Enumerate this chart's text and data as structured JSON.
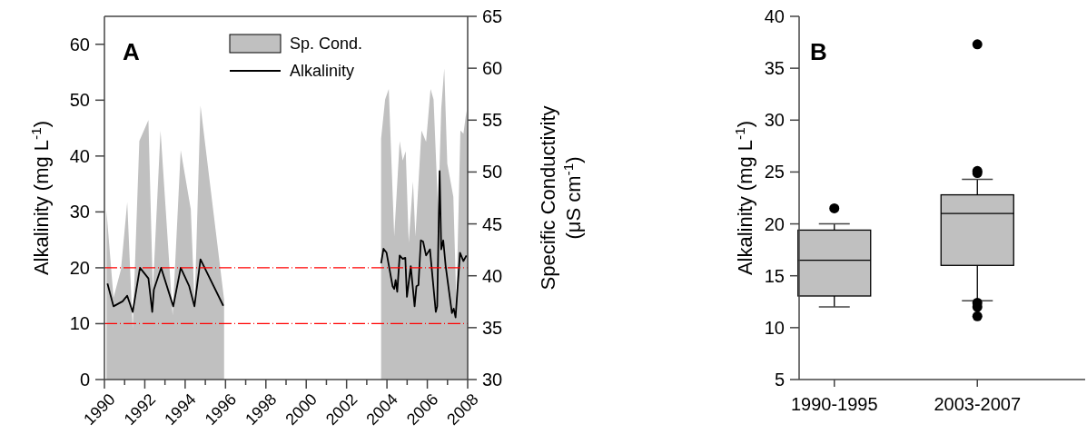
{
  "chart_data": [
    {
      "type": "area",
      "annotations": [
        "A"
      ],
      "ylabel": "Alkalinity (mg L$^{-1}$)",
      "y2label": "Specific Conductivity (μS cm$^{-1}$)",
      "xlim": [
        1990,
        2008
      ],
      "xticks": [
        1990,
        {
          "value": 1991,
          "label": null
        },
        1992,
        {
          "value": 1993,
          "label": null
        },
        1994,
        {
          "value": 1995,
          "label": null
        },
        1996,
        {
          "value": 1997,
          "label": null
        },
        1998,
        {
          "value": 1999,
          "label": null
        },
        2000,
        {
          "value": 2001,
          "label": null
        },
        2002,
        {
          "value": 2003,
          "label": null
        },
        2004,
        {
          "value": 2005,
          "label": null
        },
        2006,
        {
          "value": 2007,
          "label": null
        },
        2008
      ],
      "ylim": [
        0,
        65
      ],
      "yticks": [
        0,
        10,
        20,
        30,
        40,
        50,
        60
      ],
      "y2lim": [
        30,
        65
      ],
      "y2ticks": [
        30,
        35,
        40,
        45,
        50,
        55,
        60,
        65
      ],
      "legend": "top",
      "ref_lines": [
        {
          "axis": "y",
          "value": 20,
          "color": "#ff0000",
          "line_style": "dashed"
        },
        {
          "axis": "y",
          "value": 10,
          "color": "#ff0000",
          "line_style": "dashed"
        }
      ],
      "series": [
        {
          "name": "Sp. Cond.",
          "type": "area",
          "axis": "y2",
          "color": "#c0c0c0",
          "x": [
            1990.1,
            1990.45,
            1990.82,
            1991.13,
            1991.4,
            1991.73,
            1992.18,
            1992.4,
            1992.78,
            1993.38,
            1993.78,
            1994.28,
            1994.47,
            1994.76,
            1995.93,
            2000,
            2003.71,
            2003.91,
            2004.09,
            2004.36,
            2004.63,
            2004.78,
            2004.93,
            2005.08,
            2005.29,
            2005.41,
            2005.71,
            2005.94,
            2006.16,
            2006.31,
            2006.54,
            2006.69,
            2006.84,
            2006.99,
            2007.29,
            2007.44,
            2007.64,
            2007.79,
            2007.94,
            2008
          ],
          "values": [
            46.3,
            37.9,
            40.6,
            47.1,
            34.9,
            53.0,
            55.0,
            38.6,
            54.0,
            36.2,
            52.1,
            46.4,
            37.1,
            56.4,
            37.7,
            null,
            53.2,
            57.0,
            58.0,
            43.8,
            53.0,
            51.1,
            52.0,
            43.2,
            49.1,
            43.8,
            54.0,
            52.9,
            58.0,
            57.0,
            46.1,
            56.1,
            60.0,
            50.8,
            47.6,
            37.4,
            54.0,
            53.7,
            55.9,
            53.5
          ]
        },
        {
          "name": "Alkalinity",
          "type": "line",
          "color": "#000000",
          "x": [
            1990.15,
            1990.45,
            1990.9,
            1991.13,
            1991.4,
            1991.76,
            1992.18,
            1992.37,
            1992.45,
            1992.81,
            1993.41,
            1993.78,
            1994.2,
            1994.46,
            1994.76,
            1995.89,
            2000,
            2003.71,
            2003.83,
            2003.98,
            2004.28,
            2004.36,
            2004.43,
            2004.51,
            2004.63,
            2004.78,
            2004.91,
            2004.99,
            2005.18,
            2005.37,
            2005.46,
            2005.56,
            2005.68,
            2005.79,
            2005.94,
            2006.13,
            2006.42,
            2006.49,
            2006.61,
            2006.69,
            2006.79,
            2006.91,
            2007.22,
            2007.31,
            2007.4,
            2007.62,
            2007.79,
            2007.94
          ],
          "values": [
            17.2,
            13.1,
            14.0,
            15.0,
            12.1,
            20.0,
            18.1,
            12.1,
            16.1,
            20.0,
            13.1,
            20.0,
            16.7,
            13.1,
            21.5,
            13.2,
            null,
            20.8,
            23.4,
            22.7,
            16.7,
            16.2,
            17.8,
            15.7,
            22.2,
            21.6,
            21.8,
            14.8,
            20.3,
            13.1,
            16.7,
            16.9,
            24.9,
            24.7,
            22.2,
            23.3,
            12.1,
            13.1,
            37.3,
            23.3,
            24.9,
            20.3,
            11.9,
            12.7,
            11.1,
            22.7,
            21.2,
            22.2
          ]
        }
      ]
    },
    {
      "type": "box",
      "annotations": [
        "B"
      ],
      "ylabel": "Alkalinity (mg L$^{-1}$)",
      "categories": [
        "1990-1995",
        "2003-2007"
      ],
      "ylim": [
        5,
        40
      ],
      "yticks": [
        5,
        10,
        15,
        20,
        25,
        30,
        35,
        40
      ],
      "color": "#c0c0c0",
      "boxes": [
        {
          "low": 12.0,
          "q1": 13.05,
          "median": 16.5,
          "q3": 19.4,
          "high": 20.0,
          "outliers": [
            21.5
          ]
        },
        {
          "low": 12.6,
          "q1": 16.0,
          "median": 21.0,
          "q3": 22.8,
          "high": 24.3,
          "outliers": [
            37.3,
            25.1,
            24.9,
            12.4,
            12.0,
            11.1
          ]
        }
      ]
    }
  ]
}
